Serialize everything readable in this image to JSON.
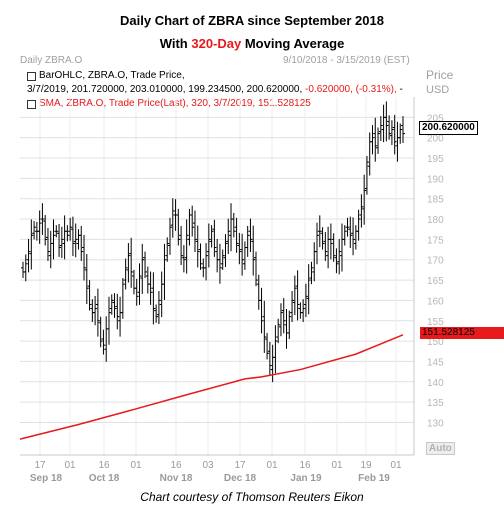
{
  "title_line1": "Daily Chart of ZBRA since September 2018",
  "title_line2_pre": "With ",
  "title_line2_highlight": "320-Day",
  "title_line2_post": " Moving Average",
  "panel_name": "Daily ZBRA.O",
  "date_range": "9/10/2018 - 3/15/2019 (EST)",
  "price_label": "Price",
  "currency_label": "USD",
  "legend": {
    "bar_line1": "BarOHLC, ZBRA.O, Trade Price,",
    "bar_line2_values": "3/7/2019, 201.720000, 203.010000, 199.234500, 200.620000,",
    "bar_line2_change": "-0.620000, (-0.31%),",
    "bar_line2_tail": "-",
    "sma_line": "SMA, ZBRA.O, Trade Price(Last), 320, 3/7/2019, 151.528125"
  },
  "last_price_tag": "200.620000",
  "sma_tag": "151.528125",
  "auto_label": "Auto",
  "credit": "Chart courtesy of Thomson Reuters Eikon",
  "colors": {
    "sma": "#e8191c",
    "bars": "#000000",
    "grid": "#e0e0e0"
  },
  "chart_data": {
    "type": "line",
    "title": "Daily Chart of ZBRA since September 2018",
    "subtitle": "With 320-Day Moving Average",
    "ylabel": "Price USD",
    "ylim": [
      122,
      210
    ],
    "yticks": [
      130,
      135,
      140,
      145,
      150,
      155,
      160,
      165,
      170,
      175,
      180,
      185,
      190,
      195,
      200,
      205
    ],
    "x_day_ticks": [
      "17",
      "01",
      "16",
      "01",
      "16",
      "03",
      "17",
      "01",
      "16",
      "01",
      "19",
      "01"
    ],
    "x_month_labels": [
      "Sep 18",
      "Oct 18",
      "Nov 18",
      "Dec 18",
      "Jan 19",
      "Feb 19"
    ],
    "series": [
      {
        "name": "BarOHLC, ZBRA.O, Trade Price",
        "kind": "ohlc",
        "close": [
          167,
          169,
          172,
          176,
          178,
          177,
          179,
          180,
          175,
          172,
          174,
          176,
          177,
          173,
          175,
          177,
          176,
          178,
          174,
          175,
          176,
          172,
          168,
          163,
          159,
          157,
          158,
          155,
          150,
          149,
          153,
          157,
          160,
          158,
          156,
          157,
          164,
          168,
          171,
          167,
          163,
          161,
          166,
          170,
          167,
          164,
          162,
          158,
          156,
          160,
          164,
          170,
          174,
          178,
          182,
          181,
          175,
          171,
          170,
          176,
          181,
          178,
          175,
          172,
          169,
          168,
          171,
          175,
          177,
          173,
          170,
          168,
          171,
          174,
          177,
          180,
          177,
          174,
          172,
          170,
          173,
          176,
          175,
          170,
          165,
          160,
          155,
          151,
          147,
          144,
          146,
          150,
          154,
          157,
          155,
          152,
          156,
          160,
          163,
          159,
          157,
          158,
          161,
          165,
          168,
          172,
          176,
          177,
          174,
          172,
          175,
          174,
          171,
          169,
          172,
          175,
          177,
          178,
          176,
          175,
          177,
          180,
          183,
          187,
          194,
          199,
          200,
          198,
          201,
          203,
          205,
          203,
          201,
          202,
          199,
          200,
          202,
          201
        ]
      },
      {
        "name": "SMA, ZBRA.O, Trade Price(Last), 320",
        "kind": "line",
        "x": [
          0,
          20,
          40,
          60,
          80,
          86,
          100,
          120,
          137
        ],
        "values": [
          125.9,
          129.5,
          133.2,
          137.0,
          140.7,
          141.2,
          143.0,
          146.8,
          151.53
        ]
      }
    ],
    "last_bar": {
      "date": "3/7/2019",
      "open": 201.72,
      "high": 203.01,
      "low": 199.2345,
      "close": 200.62,
      "change": -0.62,
      "change_pct": -0.31
    },
    "grid": true,
    "legend_position": "top-left"
  }
}
